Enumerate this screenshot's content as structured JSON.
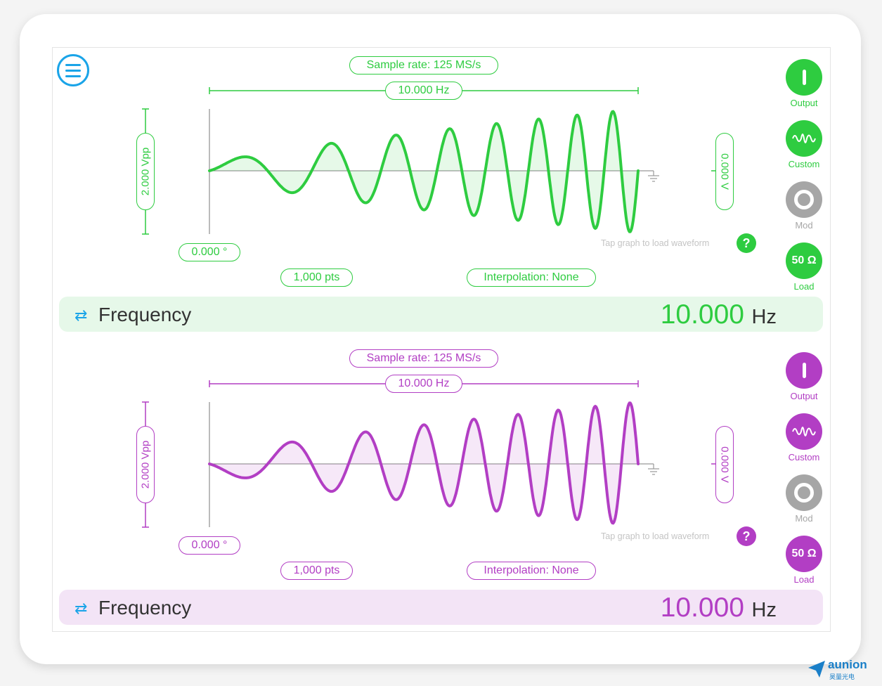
{
  "colors": {
    "ch1": "#2ecc40",
    "ch1_bg": "#e6f8e9",
    "ch2": "#b23ec4",
    "ch2_bg": "#f3e4f6",
    "accent": "#1aa4e8"
  },
  "menu_icon": "hamburger-menu-icon",
  "channels": [
    {
      "sample_rate": "Sample rate: 125 MS/s",
      "period": "10.000 Hz",
      "amplitude": "2.000 Vpp",
      "offset": "0.000 V",
      "phase": "0.000 °",
      "points": "1,000 pts",
      "interpolation": "Interpolation: None",
      "hint": "Tap graph to load waveform",
      "help": "?",
      "buttons": {
        "output": "Output",
        "custom": "Custom",
        "mod": "Mod",
        "load": "Load",
        "load_value": "50 Ω"
      },
      "freq_label": "Frequency",
      "freq_value": "10.000",
      "freq_unit": "Hz"
    },
    {
      "sample_rate": "Sample rate: 125 MS/s",
      "period": "10.000 Hz",
      "amplitude": "2.000 Vpp",
      "offset": "0.000 V",
      "phase": "0.000 °",
      "points": "1,000 pts",
      "interpolation": "Interpolation: None",
      "hint": "Tap graph to load waveform",
      "help": "?",
      "buttons": {
        "output": "Output",
        "custom": "Custom",
        "mod": "Mod",
        "load": "Load",
        "load_value": "50 Ω"
      },
      "freq_label": "Frequency",
      "freq_value": "10.000",
      "freq_unit": "Hz"
    }
  ],
  "logo": {
    "word": "aunion",
    "sub": "昊量光电"
  }
}
